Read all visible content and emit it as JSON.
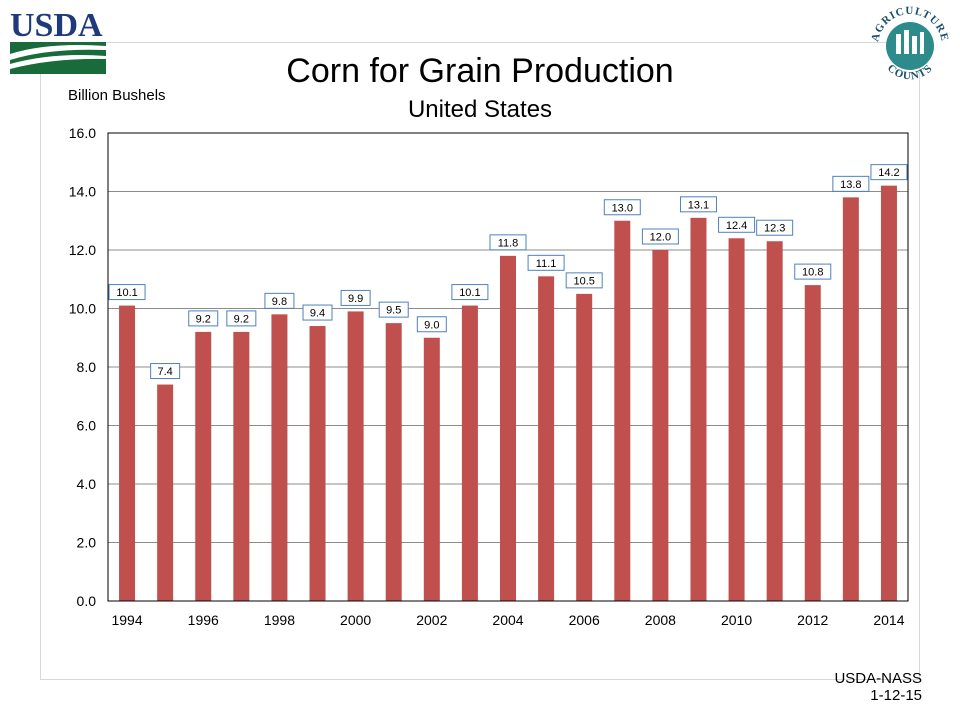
{
  "header": {
    "usda_logo_text": "USDA",
    "ag_counts_top": "AGRICULTURE",
    "ag_counts_bottom": "COUNTS"
  },
  "footer": {
    "source": "USDA-NASS",
    "date": "1-12-15"
  },
  "colors": {
    "bar": "#c0504d",
    "usda_green": "#1a6b3c",
    "usda_blue": "#1f3a7a",
    "label_border": "#4f81bd"
  },
  "chart_data": {
    "type": "bar",
    "title": "Corn for Grain Production",
    "subtitle": "United States",
    "ylabel": "Billion Bushels",
    "xlabel": "",
    "ylim": [
      0,
      16
    ],
    "yticks": [
      "0.0",
      "2.0",
      "4.0",
      "6.0",
      "8.0",
      "10.0",
      "12.0",
      "14.0",
      "16.0"
    ],
    "categories": [
      "1994",
      "1995",
      "1996",
      "1997",
      "1998",
      "1999",
      "2000",
      "2001",
      "2002",
      "2003",
      "2004",
      "2005",
      "2006",
      "2007",
      "2008",
      "2009",
      "2010",
      "2011",
      "2012",
      "2013",
      "2014"
    ],
    "xtick_labels": [
      "1994",
      "",
      "1996",
      "",
      "1998",
      "",
      "2000",
      "",
      "2002",
      "",
      "2004",
      "",
      "2006",
      "",
      "2008",
      "",
      "2010",
      "",
      "2012",
      "",
      "2014"
    ],
    "values": [
      10.1,
      7.4,
      9.2,
      9.2,
      9.8,
      9.4,
      9.9,
      9.5,
      9.0,
      10.1,
      11.8,
      11.1,
      10.5,
      13.0,
      12.0,
      13.1,
      12.4,
      12.3,
      10.8,
      13.8,
      14.2
    ],
    "data_labels": [
      "10.1",
      "7.4",
      "9.2",
      "9.2",
      "9.8",
      "9.4",
      "9.9",
      "9.5",
      "9.0",
      "10.1",
      "11.8",
      "11.1",
      "10.5",
      "13.0",
      "12.0",
      "13.1",
      "12.4",
      "12.3",
      "10.8",
      "13.8",
      "14.2"
    ],
    "grid": true,
    "legend": "none"
  }
}
